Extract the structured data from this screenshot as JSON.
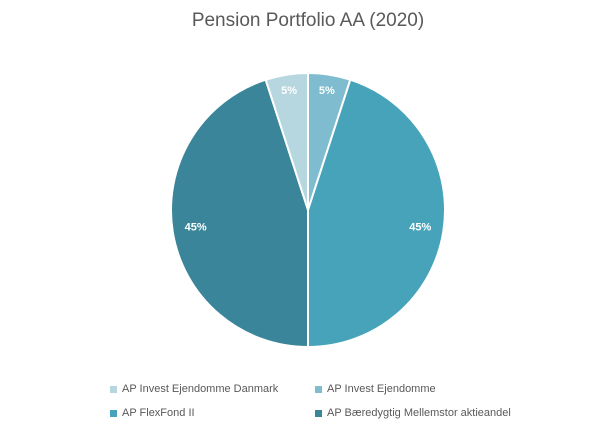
{
  "chart_data": {
    "type": "pie",
    "title": "Pension Portfolio AA (2020)",
    "categories": [
      "AP Invest Ejendomme Danmark",
      "AP Invest Ejendomme",
      "AP FlexFond II",
      "AP Bæredygtig Mellemstor aktieandel"
    ],
    "values": [
      5,
      5,
      45,
      45
    ],
    "value_labels": [
      "5%",
      "5%",
      "45%",
      "45%"
    ],
    "colors": [
      "#b7d7e0",
      "#7fbccf",
      "#46a3b9",
      "#3a8599"
    ],
    "start": "12 o'clock",
    "direction": "clockwise",
    "slice_order": [
      1,
      2,
      3,
      0
    ],
    "legend_position": "bottom"
  }
}
